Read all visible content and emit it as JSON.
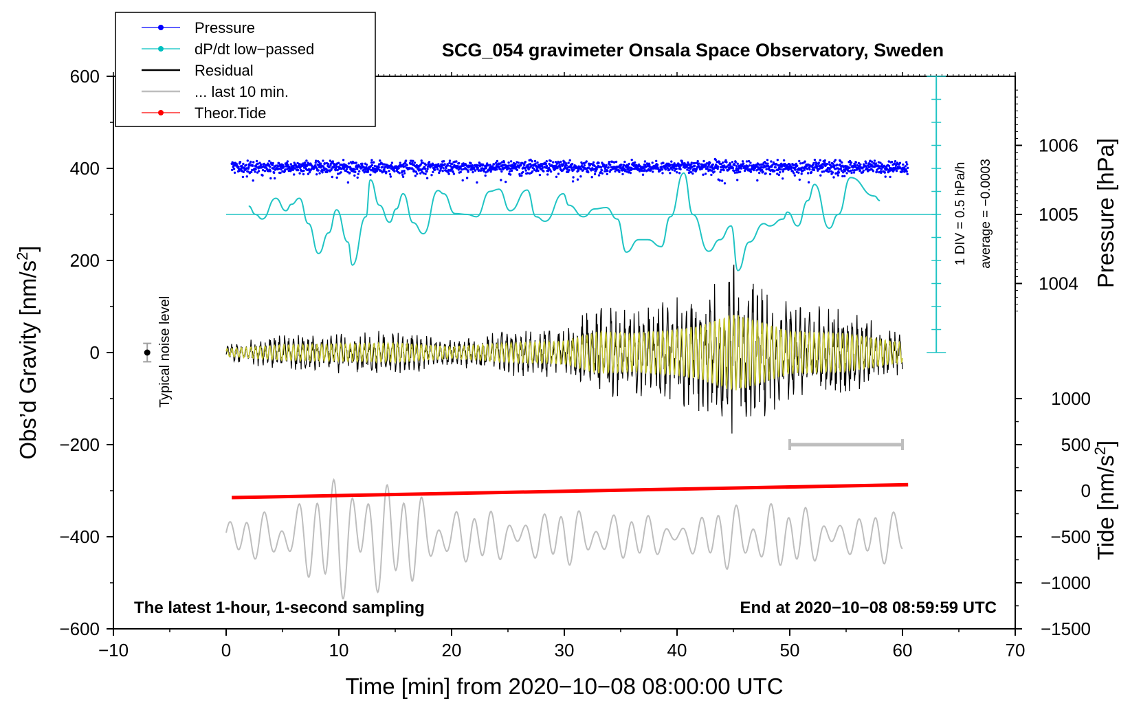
{
  "chart_data": {
    "type": "line",
    "title": "SCG_054 gravimeter Onsala Space Observatory, Sweden",
    "xlabel": "Time [min] from 2020−10−08 08:00:00 UTC",
    "ylabel_left_main": "Obs’d Gravity [nm/s",
    "ylabel_left_sup": "2",
    "ylabel_left_end": "]",
    "ylabel_right_pressure": "Pressure [hPa]",
    "ylabel_right_tide_main": "Tide [nm/s",
    "ylabel_right_tide_sup": "2",
    "ylabel_right_tide_end": "]",
    "xlim": [
      -10,
      70
    ],
    "ylim": [
      -600,
      600
    ],
    "x_ticks": [
      -10,
      0,
      10,
      20,
      30,
      40,
      50,
      60,
      70
    ],
    "x_tick_labels": [
      "−10",
      "0",
      "10",
      "20",
      "30",
      "40",
      "50",
      "60",
      "70"
    ],
    "y_ticks": [
      -600,
      -400,
      -200,
      0,
      200,
      400,
      600
    ],
    "y_tick_labels": [
      "−600",
      "−400",
      "−200",
      "0",
      "200",
      "400",
      "600"
    ],
    "pressure_axis": {
      "ticks": [
        1004,
        1005,
        1006
      ],
      "labels": [
        "1004",
        "1005",
        "1006"
      ],
      "ref_hpa": 1005,
      "ref_gravity": 300,
      "hpa_per_gravity_unit": 0.0066667
    },
    "tide_axis": {
      "ticks": [
        -1500,
        -1000,
        -500,
        0,
        500,
        1000
      ],
      "labels": [
        "−1500",
        "−1000",
        "−500",
        "0",
        "500",
        "1000"
      ],
      "gravity_at_zero": -300,
      "tide_per_gravity_unit": 5
    },
    "dpdt_scale": {
      "x": 63,
      "y_from": 0,
      "y_to": 600,
      "divisions": 12,
      "label1": "1 DIV = 0.5 hPa/h",
      "label2": "average = −0.0003"
    },
    "noise_level": {
      "x": -7,
      "y": 0,
      "err": 20,
      "label": "Typical noise level"
    },
    "last_10min_bar": {
      "x0": 50,
      "x1": 60,
      "y": -200
    },
    "annotation_left": "The latest 1-hour, 1-second sampling",
    "annotation_right": "End at 2020−10−08 08:59:59 UTC",
    "legend": [
      {
        "label": "Pressure",
        "color": "#0000ff",
        "marker": true
      },
      {
        "label": "dP/dt low−passed",
        "color": "#00c0c0",
        "marker": true
      },
      {
        "label": "Residual",
        "color": "#000000",
        "marker": false
      },
      {
        "label": "... last 10 min.",
        "color": "#bebebe",
        "marker": false
      },
      {
        "label": "Theor.Tide",
        "color": "#ff0000",
        "marker": true
      }
    ],
    "series": [
      {
        "name": "Pressure",
        "color": "#0000ff",
        "kind": "scatter",
        "x_range": [
          0.5,
          60.5
        ],
        "center": 403,
        "spread": 8
      },
      {
        "name": "dP/dt low−passed",
        "color": "#20c4c4",
        "kind": "line",
        "baseline": 300,
        "x": [
          2,
          2.6,
          3.2,
          4.4,
          5.3,
          5.8,
          6.5,
          7.3,
          8.2,
          9.1,
          9.8,
          10.8,
          11.2,
          12.4,
          12.8,
          13.6,
          14.5,
          15.1,
          15.7,
          16.6,
          17.5,
          18.8,
          19.3,
          20.3,
          21.4,
          22.2,
          23.4,
          24.2,
          25.2,
          26.7,
          27.5,
          28.3,
          29.9,
          30.4,
          31.7,
          32.7,
          33.7,
          34.7,
          35.5,
          36.6,
          37.4,
          38.6,
          39.4,
          40.6,
          41.4,
          42.8,
          43.8,
          44.8,
          45.4,
          46.4,
          47.7,
          48.2,
          49.4,
          49.8,
          50.7,
          51.6,
          52.2,
          53.5,
          54.3,
          55.4,
          57.5,
          58
        ],
        "y": [
          318,
          300,
          290,
          335,
          308,
          322,
          335,
          280,
          215,
          260,
          310,
          240,
          190,
          295,
          375,
          320,
          283,
          312,
          345,
          282,
          258,
          352,
          345,
          302,
          300,
          295,
          350,
          355,
          308,
          353,
          295,
          285,
          345,
          320,
          295,
          312,
          315,
          290,
          218,
          245,
          245,
          230,
          295,
          390,
          300,
          220,
          245,
          275,
          178,
          240,
          280,
          275,
          290,
          305,
          275,
          330,
          365,
          270,
          300,
          380,
          340,
          330
        ]
      },
      {
        "name": "Residual",
        "color": "#000000",
        "kind": "line",
        "x_range": [
          0,
          60
        ],
        "center": 0,
        "envelope_x": [
          0,
          5,
          10,
          15,
          20,
          25,
          30,
          33,
          36,
          40,
          42,
          45,
          47,
          50,
          55,
          60
        ],
        "envelope_amp": [
          20,
          40,
          45,
          50,
          30,
          50,
          60,
          110,
          100,
          120,
          140,
          200,
          170,
          110,
          100,
          50
        ]
      },
      {
        "name": "Residual (filtered)",
        "color": "#c8c832",
        "kind": "line",
        "x_range": [
          0,
          60
        ],
        "center": 0
      },
      {
        "name": "... last 10 min.",
        "color": "#bebebe",
        "kind": "line",
        "x_range": [
          0,
          60
        ],
        "center": -400,
        "envelope_x": [
          0,
          5,
          10,
          12,
          15,
          20,
          25,
          30,
          35,
          40,
          45,
          48,
          50,
          55,
          60
        ],
        "envelope_amp": [
          30,
          60,
          120,
          160,
          100,
          60,
          45,
          55,
          50,
          30,
          65,
          80,
          60,
          40,
          55
        ]
      },
      {
        "name": "Theor.Tide",
        "color": "#ff0000",
        "kind": "line",
        "x": [
          0.5,
          60.5
        ],
        "y": [
          -315,
          -287
        ]
      }
    ]
  }
}
